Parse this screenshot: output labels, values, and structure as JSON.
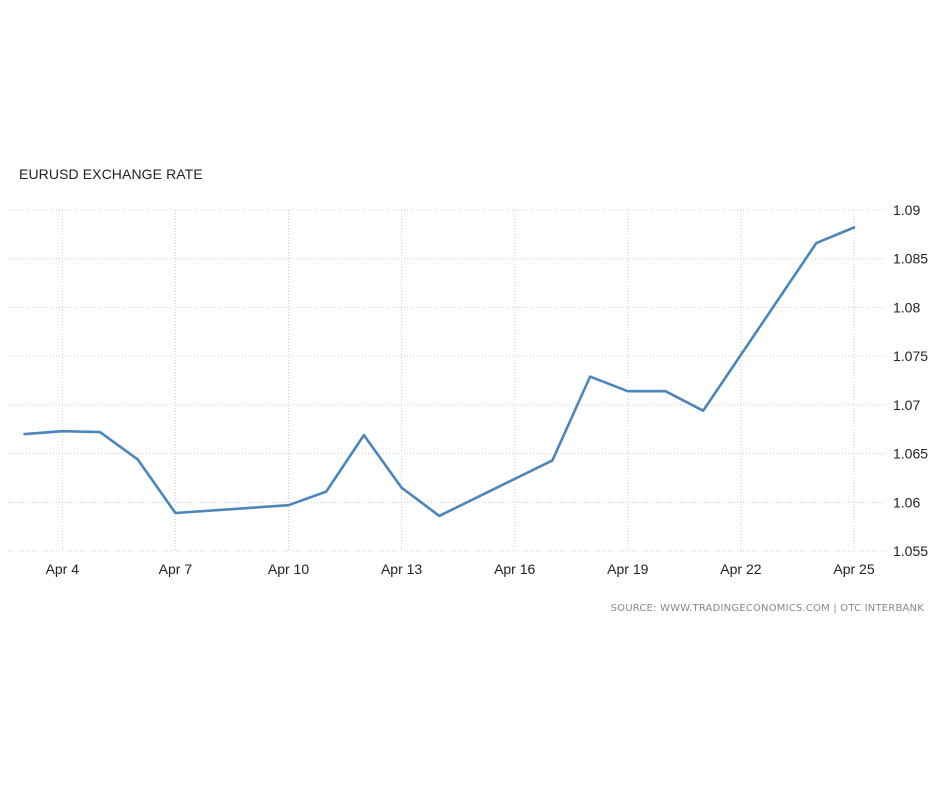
{
  "title": "EURUSD EXCHANGE RATE",
  "source": "SOURCE: WWW.TRADINGECONOMICS.COM | OTC INTERBANK",
  "colors": {
    "line": "#4a86bd",
    "grid": "#cccccc",
    "text": "#222222",
    "source": "#888888"
  },
  "chart_data": {
    "type": "line",
    "title": "EURUSD EXCHANGE RATE",
    "xlabel": "",
    "ylabel": "",
    "x_tick_labels": [
      "Apr 4",
      "Apr 7",
      "Apr 10",
      "Apr 13",
      "Apr 16",
      "Apr 19",
      "Apr 22",
      "Apr 25"
    ],
    "y_tick_labels": [
      "1.055",
      "1.06",
      "1.065",
      "1.07",
      "1.075",
      "1.08",
      "1.085",
      "1.09"
    ],
    "ylim": [
      1.055,
      1.09
    ],
    "xlim_days": [
      3,
      25
    ],
    "grid": true,
    "y_axis_side": "right",
    "series": [
      {
        "name": "",
        "points": [
          {
            "x": "Apr 3",
            "y": 1.067
          },
          {
            "x": "Apr 4",
            "y": 1.0673
          },
          {
            "x": "Apr 5",
            "y": 1.0672
          },
          {
            "x": "Apr 6",
            "y": 1.0644
          },
          {
            "x": "Apr 7",
            "y": 1.0589
          },
          {
            "x": "Apr 10",
            "y": 1.0597
          },
          {
            "x": "Apr 11",
            "y": 1.0611
          },
          {
            "x": "Apr 12",
            "y": 1.0669
          },
          {
            "x": "Apr 13",
            "y": 1.0615
          },
          {
            "x": "Apr 14",
            "y": 1.0586
          },
          {
            "x": "Apr 17",
            "y": 1.0643
          },
          {
            "x": "Apr 18",
            "y": 1.0729
          },
          {
            "x": "Apr 19",
            "y": 1.0714
          },
          {
            "x": "Apr 20",
            "y": 1.0714
          },
          {
            "x": "Apr 21",
            "y": 1.0694
          },
          {
            "x": "Apr 24",
            "y": 1.0866
          },
          {
            "x": "Apr 25",
            "y": 1.0882
          }
        ]
      }
    ]
  }
}
